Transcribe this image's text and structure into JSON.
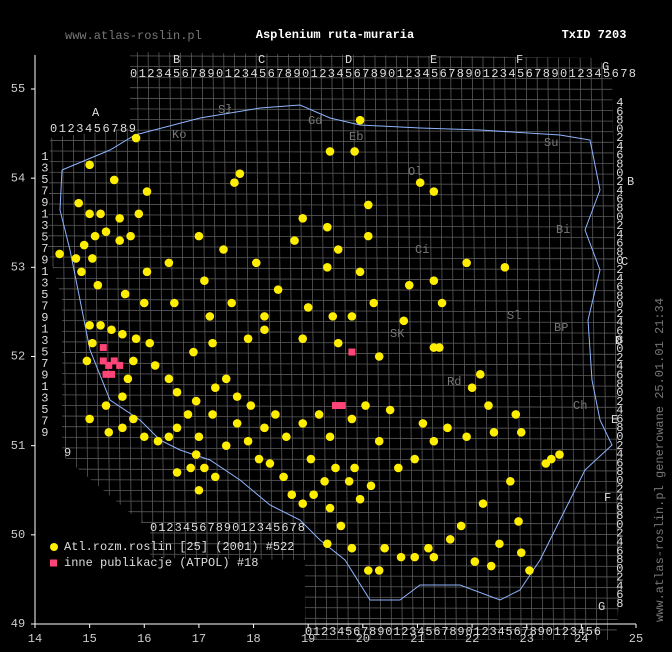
{
  "chart_data": {
    "type": "scatter",
    "site": "www.atlas-roslin.pl",
    "title": "Asplenium ruta-muraria",
    "taxon_id": "TxID 7203",
    "footer_note": "www.atlas-roslin.pl generowane 25.01.01 21:34",
    "xlim": [
      14,
      25
    ],
    "ylim": [
      49,
      55
    ],
    "xticks": [
      14,
      15,
      16,
      17,
      18,
      19,
      20,
      21,
      22,
      23,
      24,
      25
    ],
    "yticks": [
      49,
      50,
      51,
      52,
      53,
      54,
      55
    ],
    "atpol_labels": [
      "A",
      "B",
      "C",
      "D",
      "E",
      "F",
      "G",
      "B",
      "C",
      "D",
      "E",
      "F",
      "G",
      "0123456789",
      "01234567890123456789012345678901234567890123456789012345678",
      "0123456789012345678",
      "0123456789012345678901234567890123456",
      "1357913579135791357913579",
      "9",
      "4680246802468024680246802468024680246802468024680246802468"
    ],
    "region_labels": [
      "Ko",
      "Sł",
      "Gd",
      "Eb",
      "Ol",
      "Su",
      "Bi",
      "Ci",
      "SK",
      "Rd",
      "Sl",
      "BP",
      "Ch"
    ],
    "series": [
      {
        "name": "Atl.rozm.roslin [25] (2001) #522",
        "color": "#ffee00",
        "marker": "circle",
        "x": [
          19.95,
          19.4,
          19.85,
          15.85,
          15.0,
          15.45,
          16.05,
          17.75,
          17.65,
          21.05,
          21.3,
          14.8,
          15.0,
          15.2,
          15.55,
          15.9,
          14.45,
          14.75,
          14.9,
          15.1,
          15.3,
          15.55,
          15.75,
          15.05,
          14.85,
          15.15,
          16.05,
          16.45,
          17.0,
          17.45,
          18.05,
          18.75,
          18.9,
          19.35,
          19.55,
          20.1,
          20.1,
          19.35,
          19.95,
          18.45,
          17.1,
          16.55,
          15.65,
          16.0,
          17.6,
          17.2,
          18.2,
          19.0,
          19.45,
          19.8,
          20.2,
          20.85,
          21.3,
          21.9,
          22.6,
          21.45,
          20.75,
          21.3,
          21.4,
          20.3,
          19.55,
          18.9,
          18.2,
          17.9,
          17.25,
          16.9,
          15.0,
          15.2,
          15.4,
          15.6,
          15.05,
          14.95,
          15.85,
          16.1,
          15.8,
          16.2,
          16.45,
          16.6,
          15.7,
          15.6,
          15.3,
          15.0,
          15.35,
          15.6,
          15.8,
          16.0,
          16.25,
          16.45,
          16.6,
          16.8,
          16.95,
          17.25,
          17.0,
          16.95,
          16.85,
          17.1,
          17.3,
          17.0,
          16.6,
          17.5,
          17.7,
          17.9,
          18.1,
          18.3,
          18.55,
          18.7,
          18.9,
          19.1,
          19.3,
          19.5,
          19.75,
          19.95,
          20.15,
          19.4,
          19.6,
          19.35,
          19.8,
          20.1,
          20.3,
          20.4,
          20.7,
          20.95,
          21.2,
          21.6,
          21.8,
          22.2,
          22.5,
          22.35,
          22.9,
          23.05,
          22.7,
          22.9,
          23.35,
          23.45,
          23.6,
          22.8,
          22.3,
          22.0,
          22.15,
          22.4,
          21.9,
          21.55,
          21.3,
          21.1,
          20.95,
          20.65,
          20.3,
          20.5,
          20.05,
          19.8,
          19.4,
          19.2,
          18.9,
          18.6,
          18.4,
          18.2,
          17.95,
          17.7,
          17.5,
          17.3,
          19.85,
          19.05,
          22.85,
          21.3,
          22.05
        ],
        "y": [
          54.65,
          54.3,
          54.3,
          54.45,
          54.15,
          53.98,
          53.85,
          54.05,
          53.95,
          53.95,
          53.85,
          53.72,
          53.6,
          53.6,
          53.55,
          53.6,
          53.15,
          53.1,
          53.25,
          53.35,
          53.4,
          53.3,
          53.35,
          53.1,
          52.95,
          52.8,
          52.95,
          53.05,
          53.35,
          53.2,
          53.05,
          53.3,
          53.55,
          53.45,
          53.2,
          53.35,
          53.7,
          53.0,
          52.95,
          52.75,
          52.85,
          52.6,
          52.7,
          52.6,
          52.6,
          52.45,
          52.45,
          52.55,
          52.45,
          52.45,
          52.6,
          52.8,
          52.85,
          53.05,
          53.0,
          52.6,
          52.4,
          52.1,
          52.1,
          52.0,
          52.15,
          52.2,
          52.3,
          52.2,
          52.15,
          52.05,
          52.35,
          52.35,
          52.3,
          52.25,
          52.15,
          51.95,
          52.2,
          52.15,
          51.95,
          51.9,
          51.75,
          51.6,
          51.75,
          51.55,
          51.45,
          51.3,
          51.15,
          51.2,
          51.3,
          51.1,
          51.05,
          51.1,
          51.2,
          51.35,
          51.5,
          51.35,
          51.1,
          50.9,
          50.75,
          50.75,
          50.65,
          50.5,
          50.7,
          51.0,
          51.25,
          51.05,
          50.85,
          50.8,
          50.65,
          50.45,
          50.35,
          50.45,
          50.6,
          50.75,
          50.6,
          50.4,
          50.55,
          50.3,
          50.1,
          49.9,
          49.85,
          49.6,
          49.6,
          49.85,
          49.75,
          49.75,
          49.85,
          49.95,
          50.1,
          50.35,
          49.9,
          49.65,
          49.8,
          49.6,
          50.6,
          51.15,
          50.8,
          50.85,
          50.9,
          51.35,
          51.45,
          51.65,
          51.8,
          51.15,
          51.1,
          51.2,
          51.05,
          51.25,
          50.85,
          50.75,
          51.05,
          51.4,
          51.45,
          51.3,
          51.1,
          51.35,
          51.25,
          51.1,
          51.35,
          51.2,
          51.45,
          51.55,
          51.75,
          51.65,
          50.75,
          50.85,
          50.15,
          49.75,
          49.7
        ]
      },
      {
        "name": "inne publikacje (ATPOL) #18",
        "color": "#ff4477",
        "marker": "square",
        "x": [
          15.25,
          15.25,
          15.35,
          15.45,
          15.55,
          15.3,
          15.4,
          19.5,
          19.62,
          19.8
        ],
        "y": [
          52.1,
          51.95,
          51.9,
          51.95,
          51.9,
          51.8,
          51.8,
          51.45,
          51.45,
          52.05
        ]
      }
    ]
  }
}
